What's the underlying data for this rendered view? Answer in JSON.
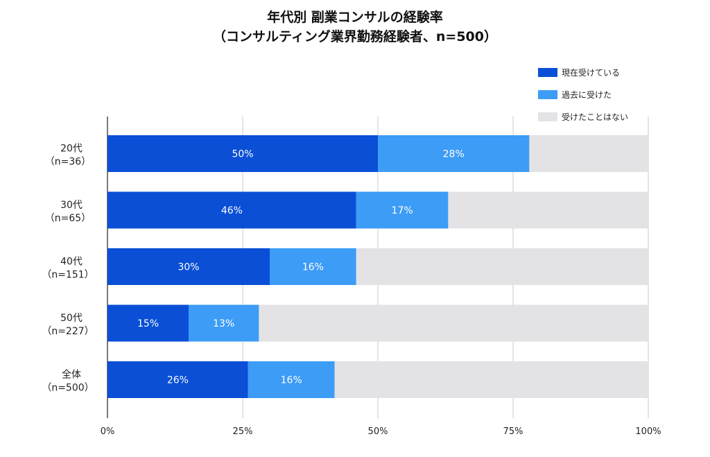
{
  "chart_data": {
    "type": "bar",
    "orientation": "horizontal",
    "stacked": true,
    "title_lines": [
      "年代別 副業コンサルの経験率",
      "（コンサルティング業界勤務経験者、n=500）"
    ],
    "categories": [
      {
        "line1": "20代",
        "line2": "（n=36）"
      },
      {
        "line1": "30代",
        "line2": "（n=65）"
      },
      {
        "line1": "40代",
        "line2": "（n=151）"
      },
      {
        "line1": "50代",
        "line2": "（n=227）"
      },
      {
        "line1": "全体",
        "line2": "（n=500）"
      }
    ],
    "series": [
      {
        "name": "現在受けている",
        "values": [
          50,
          46,
          30,
          15,
          26
        ],
        "labels": [
          "50%",
          "46%",
          "30%",
          "15%",
          "26%"
        ],
        "color": "#0a4fd6"
      },
      {
        "name": "過去に受けた",
        "values": [
          28,
          17,
          16,
          13,
          16
        ],
        "labels": [
          "28%",
          "17%",
          "16%",
          "13%",
          "16%"
        ],
        "color": "#3d9cf5"
      },
      {
        "name": "受けたことはない",
        "values": [
          22,
          37,
          54,
          72,
          58
        ],
        "color": "#e3e3e6"
      }
    ],
    "xlim": [
      0,
      100
    ],
    "xticks": [
      "0%",
      "25%",
      "50%",
      "75%",
      "100%"
    ],
    "grid": true,
    "legend_position": "top-right"
  }
}
